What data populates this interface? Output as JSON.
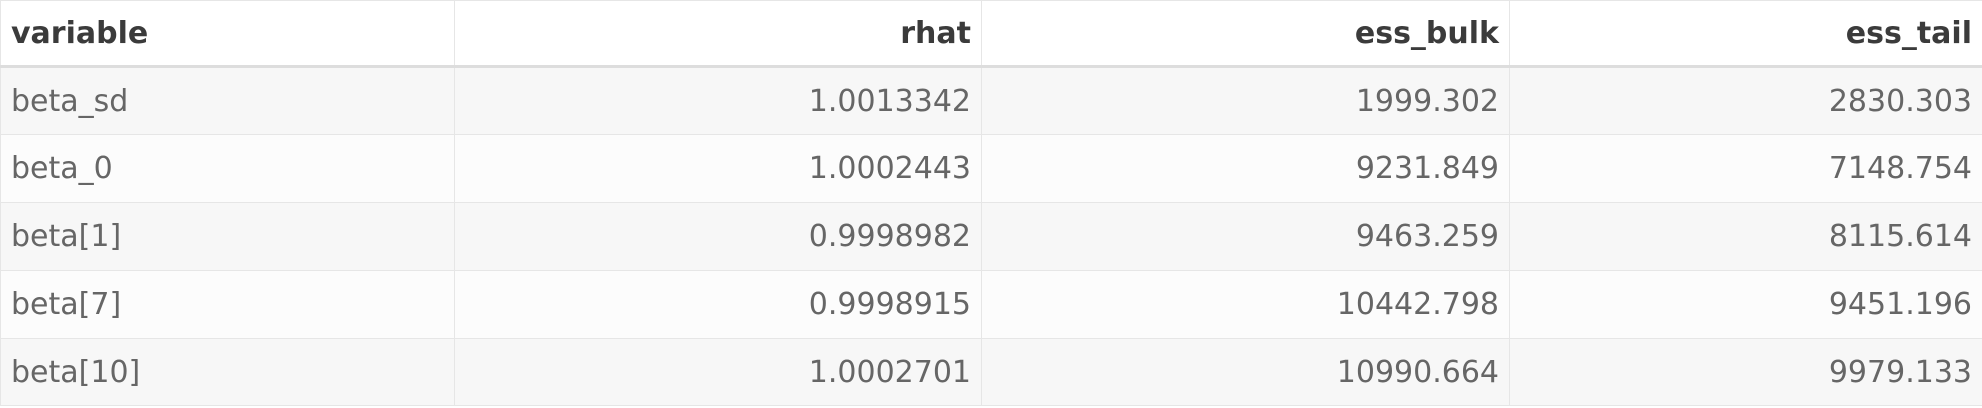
{
  "table": {
    "headers": [
      "variable",
      "rhat",
      "ess_bulk",
      "ess_tail"
    ],
    "rows": [
      [
        "beta_sd",
        "1.0013342",
        "1999.302",
        "2830.303"
      ],
      [
        "beta_0",
        "1.0002443",
        "9231.849",
        "7148.754"
      ],
      [
        "beta[1]",
        "0.9998982",
        "9463.259",
        "8115.614"
      ],
      [
        "beta[7]",
        "0.9998915",
        "10442.798",
        "9451.196"
      ],
      [
        "beta[10]",
        "1.0002701",
        "10990.664",
        "9979.133"
      ]
    ]
  }
}
